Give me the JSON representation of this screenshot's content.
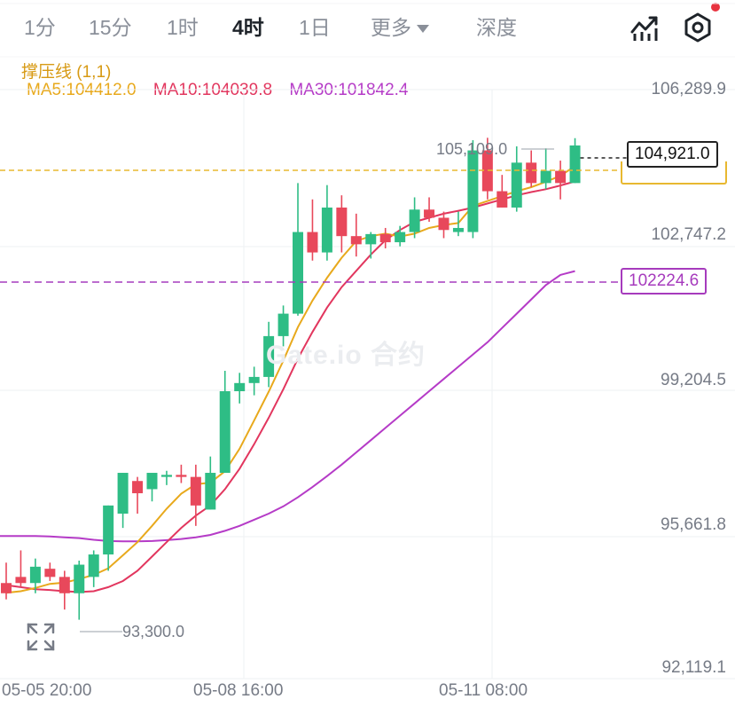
{
  "tabs": [
    {
      "label": "1分",
      "active": false
    },
    {
      "label": "15分",
      "active": false
    },
    {
      "label": "1时",
      "active": false
    },
    {
      "label": "4时",
      "active": true
    },
    {
      "label": "1日",
      "active": false
    },
    {
      "label": "更多",
      "active": false,
      "has_dropdown": true
    },
    {
      "label": "深度",
      "active": false
    }
  ],
  "toolbar": {
    "indicator_icon": "chart-indicator-icon",
    "settings_icon": "settings-hexagon-icon",
    "notification_dot_color": "#e8333f"
  },
  "indicator": {
    "title": "撑压线 (1,1)",
    "ma5": "MA5:104412.0",
    "ma10": "MA10:104039.8",
    "ma30": "MA30:101842.4"
  },
  "watermark": "Gate.io 合约",
  "colors": {
    "up": "#2ebd85",
    "down": "#e8485b",
    "ma5": "#e8a91c",
    "ma10": "#e2365e",
    "ma30": "#b53bc7",
    "support_resistance": "#a63bbd",
    "current_price_line": "#e8b830"
  },
  "chart_data": {
    "type": "candlestick",
    "y_ticks": [
      "106,289.9",
      "102,747.2",
      "99,204.5",
      "95,661.8",
      "92,119.1"
    ],
    "x_ticks": [
      "05-05 20:00",
      "05-08 16:00",
      "05-11 08:00"
    ],
    "ylim": [
      92119.1,
      106289.9
    ],
    "high_label": "105,109.0",
    "low_label": "93,300.0",
    "current_price": "104,921.0",
    "current_price_value": 104921.0,
    "resistance_label": "102224.6",
    "resistance_value": 102224.6,
    "candles": [
      {
        "o": 94200,
        "h": 94700,
        "l": 93800,
        "c": 93950
      },
      {
        "o": 94350,
        "h": 95000,
        "l": 94100,
        "c": 94200
      },
      {
        "o": 94200,
        "h": 94800,
        "l": 93950,
        "c": 94600
      },
      {
        "o": 94550,
        "h": 94700,
        "l": 94250,
        "c": 94350
      },
      {
        "o": 94350,
        "h": 94500,
        "l": 93550,
        "c": 93950
      },
      {
        "o": 93950,
        "h": 94750,
        "l": 93300,
        "c": 94650
      },
      {
        "o": 94350,
        "h": 95000,
        "l": 94100,
        "c": 94900
      },
      {
        "o": 94900,
        "h": 96100,
        "l": 94500,
        "c": 96100
      },
      {
        "o": 95900,
        "h": 96900,
        "l": 95550,
        "c": 96900
      },
      {
        "o": 96700,
        "h": 96800,
        "l": 95900,
        "c": 96400
      },
      {
        "o": 96500,
        "h": 96800,
        "l": 96200,
        "c": 96900
      },
      {
        "o": 96800,
        "h": 96950,
        "l": 96600,
        "c": 96850
      },
      {
        "o": 96850,
        "h": 97100,
        "l": 96650,
        "c": 96800
      },
      {
        "o": 96800,
        "h": 97100,
        "l": 95600,
        "c": 96100
      },
      {
        "o": 96000,
        "h": 97300,
        "l": 96000,
        "c": 96900
      },
      {
        "o": 96900,
        "h": 99400,
        "l": 96900,
        "c": 98900
      },
      {
        "o": 98900,
        "h": 99350,
        "l": 98600,
        "c": 99100
      },
      {
        "o": 99100,
        "h": 99500,
        "l": 98800,
        "c": 99250
      },
      {
        "o": 99250,
        "h": 100600,
        "l": 99000,
        "c": 100250
      },
      {
        "o": 100250,
        "h": 101000,
        "l": 100000,
        "c": 100800
      },
      {
        "o": 100800,
        "h": 104000,
        "l": 100750,
        "c": 102800
      },
      {
        "o": 102800,
        "h": 103600,
        "l": 102100,
        "c": 102300
      },
      {
        "o": 102300,
        "h": 103950,
        "l": 102100,
        "c": 103400
      },
      {
        "o": 103400,
        "h": 103700,
        "l": 102300,
        "c": 102700
      },
      {
        "o": 102700,
        "h": 103250,
        "l": 102200,
        "c": 102500
      },
      {
        "o": 102500,
        "h": 102800,
        "l": 102150,
        "c": 102750
      },
      {
        "o": 102750,
        "h": 102900,
        "l": 102400,
        "c": 102550
      },
      {
        "o": 102550,
        "h": 102950,
        "l": 102450,
        "c": 102800
      },
      {
        "o": 102800,
        "h": 103650,
        "l": 102650,
        "c": 103350
      },
      {
        "o": 103350,
        "h": 103650,
        "l": 103050,
        "c": 103150
      },
      {
        "o": 103150,
        "h": 103300,
        "l": 102650,
        "c": 102850
      },
      {
        "o": 102800,
        "h": 103300,
        "l": 102700,
        "c": 102900
      },
      {
        "o": 102800,
        "h": 105050,
        "l": 102650,
        "c": 104800
      },
      {
        "o": 104800,
        "h": 105109,
        "l": 103600,
        "c": 103800
      },
      {
        "o": 103800,
        "h": 104200,
        "l": 103400,
        "c": 103400
      },
      {
        "o": 103400,
        "h": 104900,
        "l": 103300,
        "c": 104500
      },
      {
        "o": 104500,
        "h": 104800,
        "l": 103900,
        "c": 104000
      },
      {
        "o": 104000,
        "h": 104850,
        "l": 103850,
        "c": 104300
      },
      {
        "o": 104300,
        "h": 104550,
        "l": 103600,
        "c": 104000
      },
      {
        "o": 104000,
        "h": 105100,
        "l": 104000,
        "c": 104921
      }
    ],
    "ma5": [
      93960,
      94000,
      94080,
      94180,
      94210,
      94300,
      94400,
      94560,
      94880,
      95200,
      95600,
      96020,
      96390,
      96620,
      96660,
      96940,
      97490,
      98180,
      98890,
      99650,
      100470,
      101120,
      101680,
      102170,
      102580,
      102700,
      102760,
      102690,
      102760,
      102900,
      102970,
      103020,
      103440,
      103560,
      103680,
      103800,
      103900,
      104030,
      104180,
      104412
    ],
    "ma10": [
      94150,
      94100,
      94050,
      94030,
      94000,
      93980,
      94000,
      94100,
      94250,
      94500,
      94850,
      95200,
      95550,
      95850,
      96100,
      96500,
      97000,
      97600,
      98250,
      98950,
      99700,
      100350,
      100950,
      101450,
      101850,
      102250,
      102600,
      102850,
      103050,
      103150,
      103250,
      103320,
      103400,
      103500,
      103600,
      103700,
      103780,
      103850,
      103940,
      104039.8
    ],
    "ma30": [
      95350,
      95350,
      95350,
      95340,
      95320,
      95300,
      95260,
      95230,
      95220,
      95220,
      95230,
      95250,
      95280,
      95320,
      95380,
      95480,
      95600,
      95750,
      95900,
      96080,
      96300,
      96550,
      96820,
      97100,
      97400,
      97700,
      98000,
      98300,
      98600,
      98900,
      99200,
      99500,
      99800,
      100100,
      100450,
      100800,
      101150,
      101500,
      101750,
      101842.4
    ]
  }
}
